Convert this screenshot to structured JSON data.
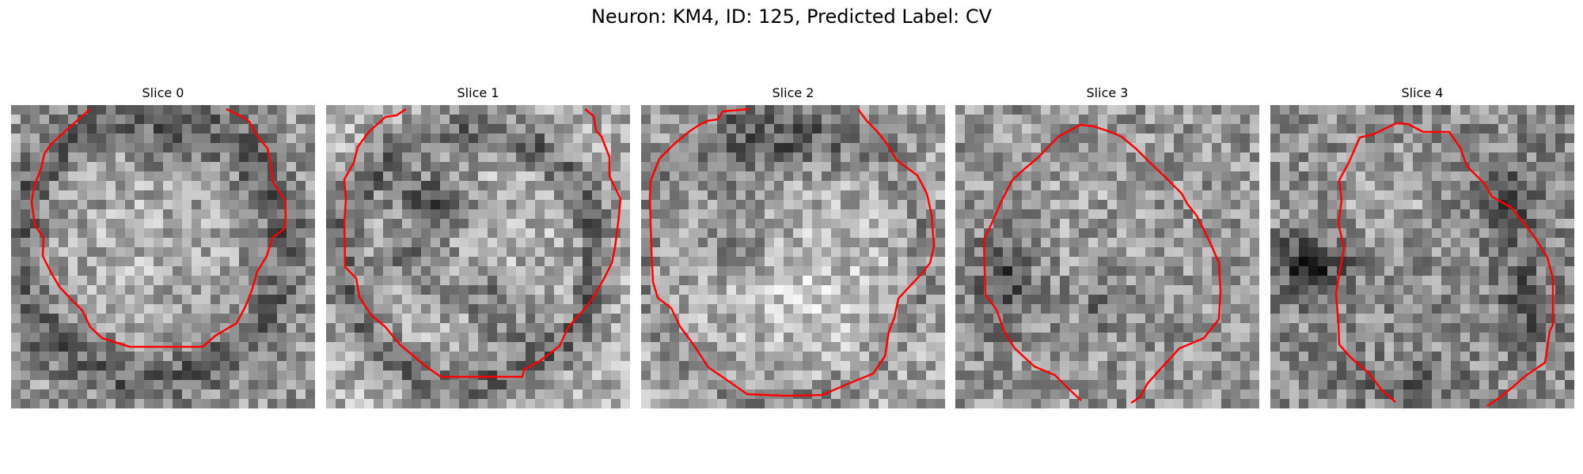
{
  "figure": {
    "suptitle": "Neuron: KM4, ID: 125, Predicted Label: CV",
    "contour_color": "#ff0000",
    "panels": [
      {
        "title": "Slice 0",
        "seed": 11,
        "content": "ring-pale-center"
      },
      {
        "title": "Slice 1",
        "seed": 23,
        "content": "bright-with-dark-x"
      },
      {
        "title": "Slice 2",
        "seed": 37,
        "content": "bright-dark-top"
      },
      {
        "title": "Slice 3",
        "seed": 41,
        "content": "textured-dark-left"
      },
      {
        "title": "Slice 4",
        "seed": 59,
        "content": "dark-blobs-left"
      }
    ]
  }
}
